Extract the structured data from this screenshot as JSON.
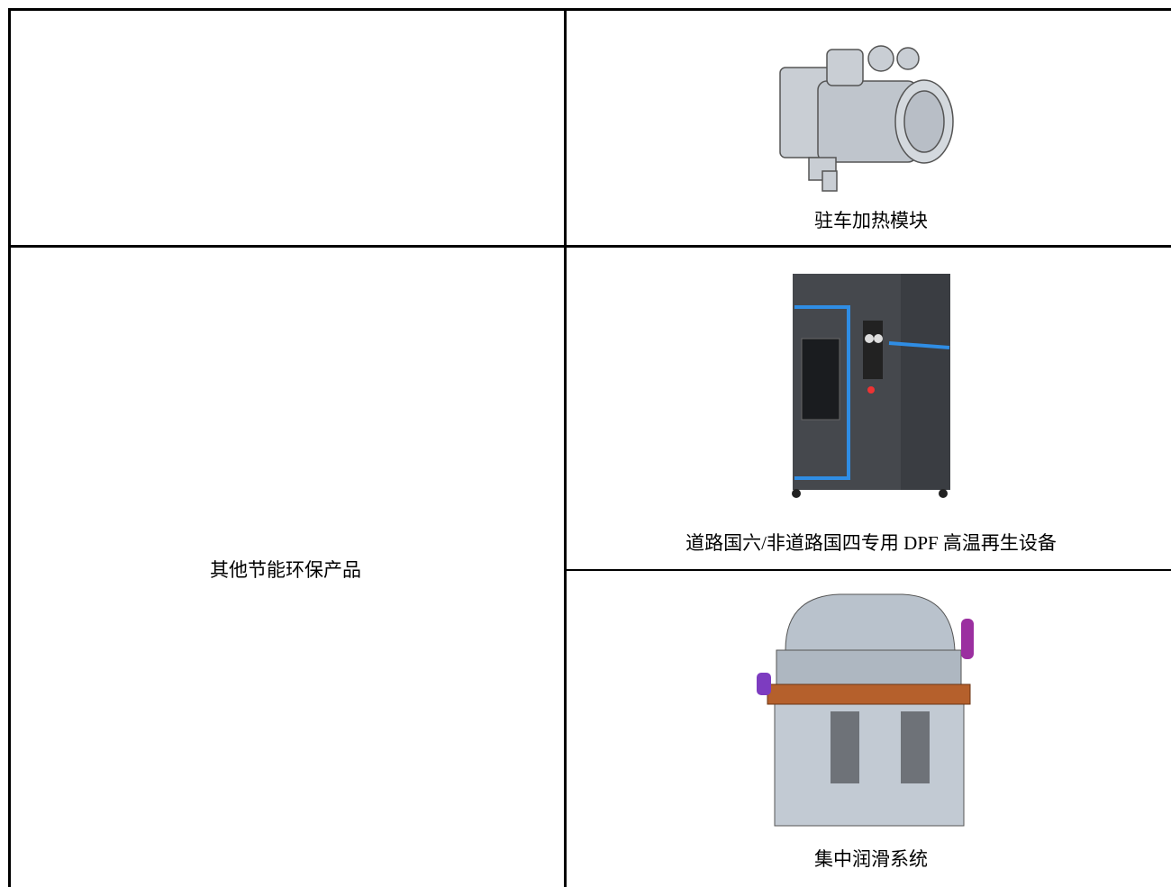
{
  "table": {
    "rows": [
      {
        "items": [
          "驻车加热模块"
        ]
      },
      {
        "category": "其他节能环保产品",
        "items": [
          "道路国六/非道路国四专用 DPF 高温再生设备",
          "集中润滑系统"
        ]
      }
    ]
  }
}
